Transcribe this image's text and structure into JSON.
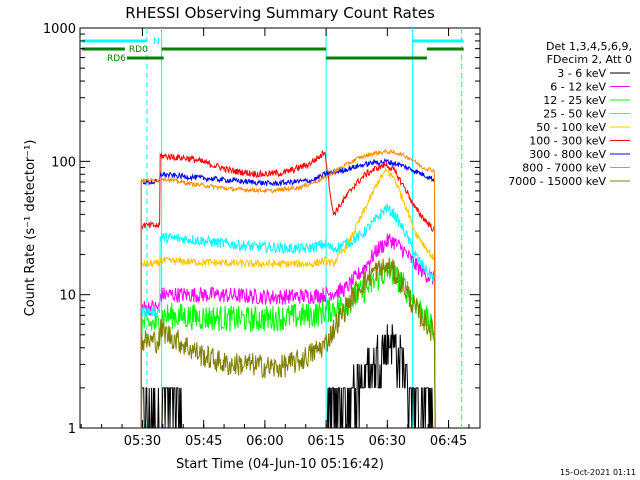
{
  "chart_data": {
    "type": "line",
    "title": "RHESSI Observing Summary Count Rates",
    "xlabel": "Start Time (04-Jun-10 05:16:42)",
    "ylabel": "Count Rate (s⁻¹ detector⁻¹)",
    "yscale": "log",
    "ylim": [
      1,
      1000
    ],
    "xlim_minutes": [
      -2,
      96
    ],
    "x_ticks": [
      {
        "m": 13.3,
        "label": "05:30"
      },
      {
        "m": 28.3,
        "label": "05:45"
      },
      {
        "m": 43.3,
        "label": "06:00"
      },
      {
        "m": 58.3,
        "label": "06:15"
      },
      {
        "m": 73.3,
        "label": "06:30"
      },
      {
        "m": 88.3,
        "label": "06:45"
      }
    ],
    "y_ticks": [
      {
        "v": 1,
        "label": "1"
      },
      {
        "v": 10,
        "label": "10"
      },
      {
        "v": 100,
        "label": "100"
      },
      {
        "v": 1000,
        "label": "1000"
      }
    ],
    "legend_header": [
      "Det 1,3,4,5,6,9,",
      "FDecim 2, Att 0"
    ],
    "legend_placement": "right",
    "series": [
      {
        "name": "3 - 6 keV",
        "color": "#000000",
        "noise": 0.3,
        "points": [
          [
            13,
            1.5
          ],
          [
            22,
            1.5
          ],
          [
            24,
            1
          ],
          [
            58,
            1
          ],
          [
            60,
            1.5
          ],
          [
            66,
            2
          ],
          [
            70,
            3
          ],
          [
            74,
            5
          ],
          [
            77,
            3
          ],
          [
            80,
            1.5
          ],
          [
            84,
            1.5
          ],
          [
            85,
            1
          ]
        ]
      },
      {
        "name": "6 - 12 keV",
        "color": "#ff00ff",
        "noise": 0.06,
        "points": [
          [
            13,
            8
          ],
          [
            17.5,
            8
          ],
          [
            17.6,
            10
          ],
          [
            30,
            10
          ],
          [
            45,
            9.6
          ],
          [
            55,
            9.8
          ],
          [
            58,
            10
          ],
          [
            63,
            11
          ],
          [
            67,
            15
          ],
          [
            71,
            22
          ],
          [
            74,
            26
          ],
          [
            77,
            22
          ],
          [
            80,
            17
          ],
          [
            83,
            14
          ],
          [
            85,
            13
          ]
        ]
      },
      {
        "name": "12 - 25 keV",
        "color": "#00ff00",
        "noise": 0.1,
        "points": [
          [
            13,
            6
          ],
          [
            17.5,
            6
          ],
          [
            17.6,
            7
          ],
          [
            40,
            6.5
          ],
          [
            55,
            7
          ],
          [
            58,
            7.5
          ],
          [
            63,
            8.5
          ],
          [
            68,
            11
          ],
          [
            72,
            14
          ],
          [
            74,
            15
          ],
          [
            77,
            12
          ],
          [
            80,
            9
          ],
          [
            83,
            6.5
          ],
          [
            85,
            5
          ]
        ]
      },
      {
        "name": "25 - 50 keV",
        "color": "#00ffff",
        "noise": 0.04,
        "points": [
          [
            13,
            7.5
          ],
          [
            17.5,
            7.5
          ],
          [
            17.6,
            27
          ],
          [
            25,
            26
          ],
          [
            40,
            23
          ],
          [
            53,
            22
          ],
          [
            58,
            24
          ],
          [
            60,
            22
          ],
          [
            63,
            24
          ],
          [
            67,
            28
          ],
          [
            71,
            38
          ],
          [
            73,
            45
          ],
          [
            75,
            40
          ],
          [
            78,
            28
          ],
          [
            80,
            20
          ],
          [
            83,
            15
          ],
          [
            85,
            13
          ]
        ]
      },
      {
        "name": "50 - 100 keV",
        "color": "#ffc800",
        "noise": 0.03,
        "points": [
          [
            13,
            17
          ],
          [
            17.5,
            17
          ],
          [
            17.6,
            18
          ],
          [
            40,
            17
          ],
          [
            55,
            17
          ],
          [
            58,
            18
          ],
          [
            60,
            17
          ],
          [
            64,
            25
          ],
          [
            68,
            45
          ],
          [
            71,
            70
          ],
          [
            73,
            85
          ],
          [
            75,
            75
          ],
          [
            78,
            45
          ],
          [
            80,
            30
          ],
          [
            83,
            22
          ],
          [
            85,
            18
          ]
        ]
      },
      {
        "name": "100 - 300 keV",
        "color": "#ff0000",
        "noise": 0.025,
        "points": [
          [
            13,
            33
          ],
          [
            17.5,
            33
          ],
          [
            17.6,
            110
          ],
          [
            25,
            105
          ],
          [
            30,
            95
          ],
          [
            35,
            85
          ],
          [
            42,
            80
          ],
          [
            48,
            82
          ],
          [
            54,
            95
          ],
          [
            57,
            110
          ],
          [
            58,
            120
          ],
          [
            60,
            40
          ],
          [
            62,
            48
          ],
          [
            65,
            65
          ],
          [
            68,
            80
          ],
          [
            71,
            90
          ],
          [
            73,
            95
          ],
          [
            75,
            85
          ],
          [
            78,
            60
          ],
          [
            80,
            45
          ],
          [
            83,
            35
          ],
          [
            85,
            30
          ]
        ]
      },
      {
        "name": "300 - 800 keV",
        "color": "#0000ff",
        "noise": 0.02,
        "points": [
          [
            13,
            70
          ],
          [
            17.5,
            70
          ],
          [
            17.6,
            80
          ],
          [
            30,
            74
          ],
          [
            45,
            68
          ],
          [
            55,
            72
          ],
          [
            58,
            80
          ],
          [
            62,
            85
          ],
          [
            66,
            92
          ],
          [
            70,
            98
          ],
          [
            73,
            100
          ],
          [
            76,
            95
          ],
          [
            80,
            85
          ],
          [
            84,
            75
          ],
          [
            85,
            72
          ]
        ]
      },
      {
        "name": "800 - 7000 keV",
        "color": "#ff8c00",
        "noise": 0.015,
        "points": [
          [
            13,
            72
          ],
          [
            17.5,
            72
          ],
          [
            17.6,
            75
          ],
          [
            25,
            68
          ],
          [
            35,
            62
          ],
          [
            45,
            60
          ],
          [
            52,
            64
          ],
          [
            58,
            75
          ],
          [
            62,
            90
          ],
          [
            66,
            105
          ],
          [
            70,
            115
          ],
          [
            73,
            118
          ],
          [
            76,
            115
          ],
          [
            79,
            105
          ],
          [
            82,
            90
          ],
          [
            85,
            85
          ]
        ]
      },
      {
        "name": "7000 - 15000 keV",
        "color": "#808000",
        "noise": 0.09,
        "points": [
          [
            13,
            4.5
          ],
          [
            17.5,
            4.5
          ],
          [
            17.6,
            5.5
          ],
          [
            22,
            4.5
          ],
          [
            28,
            3.5
          ],
          [
            34,
            3.0
          ],
          [
            40,
            3.0
          ],
          [
            46,
            2.8
          ],
          [
            52,
            3.2
          ],
          [
            58,
            4.2
          ],
          [
            62,
            7
          ],
          [
            66,
            11
          ],
          [
            70,
            15
          ],
          [
            74,
            16
          ],
          [
            77,
            12
          ],
          [
            80,
            8
          ],
          [
            83,
            6
          ],
          [
            85,
            5
          ]
        ]
      }
    ],
    "vlines": [
      {
        "m": 14.4,
        "dash": true
      },
      {
        "m": 18,
        "dash": false
      },
      {
        "m": 58.3,
        "dash": false
      },
      {
        "m": 79.5,
        "dash": false
      },
      {
        "m": 91.5,
        "dash": true
      }
    ],
    "flags": [
      {
        "label": "N",
        "color": "#00ffff",
        "segments": [
          [
            -1.5,
            14.4
          ],
          [
            79.5,
            92
          ]
        ]
      },
      {
        "label": "RD0",
        "color": "#008000",
        "segments": [
          [
            -1.5,
            9
          ],
          [
            18,
            58.3
          ],
          [
            83,
            92
          ]
        ]
      },
      {
        "label": "RD6",
        "color": "#008000",
        "segments": [
          [
            9.5,
            18.5
          ],
          [
            58.3,
            83
          ]
        ]
      }
    ],
    "footer_date": "15-Oct-2021 01:11"
  }
}
